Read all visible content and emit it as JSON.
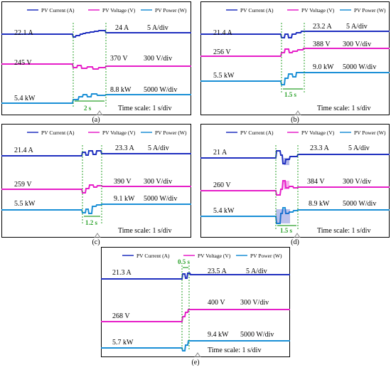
{
  "legend": {
    "current": "PV Current (A)",
    "voltage": "PV Voltage (V)",
    "power": "PV Power (W)"
  },
  "time_scale": "Time scale: 1 s/div",
  "colors": {
    "current": "#1f2fbf",
    "voltage": "#e61ec8",
    "power": "#1a8fd6",
    "marker": "#2aa12a"
  },
  "chart_data": [
    {
      "type": "line",
      "caption": "(a)",
      "before": {
        "current": "22.1 A",
        "voltage": "245 V",
        "power": "5.4 kW"
      },
      "after": {
        "current": "24 A",
        "voltage": "370 V",
        "power": "8.8 kW"
      },
      "scales": {
        "current": "5 A/div",
        "voltage": "300 V/div",
        "power": "5000 W/div"
      },
      "transition": "2 s"
    },
    {
      "type": "line",
      "caption": "(b)",
      "before": {
        "current": "21.4 A",
        "voltage": "256 V",
        "power": "5.5 kW"
      },
      "after": {
        "current": "23.2 A",
        "voltage": "388 V",
        "power": "9.0 kW"
      },
      "scales": {
        "current": "5 A/div",
        "voltage": "300 V/div",
        "power": "5000 W/div"
      },
      "transition": "1.5 s"
    },
    {
      "type": "line",
      "caption": "(c)",
      "before": {
        "current": "21.4 A",
        "voltage": "259 V",
        "power": "5.5 kW"
      },
      "after": {
        "current": "23.3 A",
        "voltage": "390 V",
        "power": "9.1 kW"
      },
      "scales": {
        "current": "5 A/div",
        "voltage": "300 V/div",
        "power": "5000 W/div"
      },
      "transition": "1.2 s"
    },
    {
      "type": "line",
      "caption": "(d)",
      "before": {
        "current": "21 A",
        "voltage": "260 V",
        "power": "5.4 kW"
      },
      "after": {
        "current": "23.3 A",
        "voltage": "384 V",
        "power": "8.9 kW"
      },
      "scales": {
        "current": "5 A/div",
        "voltage": "300 V/div",
        "power": "5000 W/div"
      },
      "transition": "1.5 s"
    },
    {
      "type": "line",
      "caption": "(e)",
      "before": {
        "current": "21.3 A",
        "voltage": "268 V",
        "power": "5.7 kW"
      },
      "after": {
        "current": "23.5 A",
        "voltage": "400 V",
        "power": "9.4 kW"
      },
      "scales": {
        "current": "5 A/div",
        "voltage": "300 V/div",
        "power": "5000 W/div"
      },
      "transition": "0.5 s"
    }
  ]
}
